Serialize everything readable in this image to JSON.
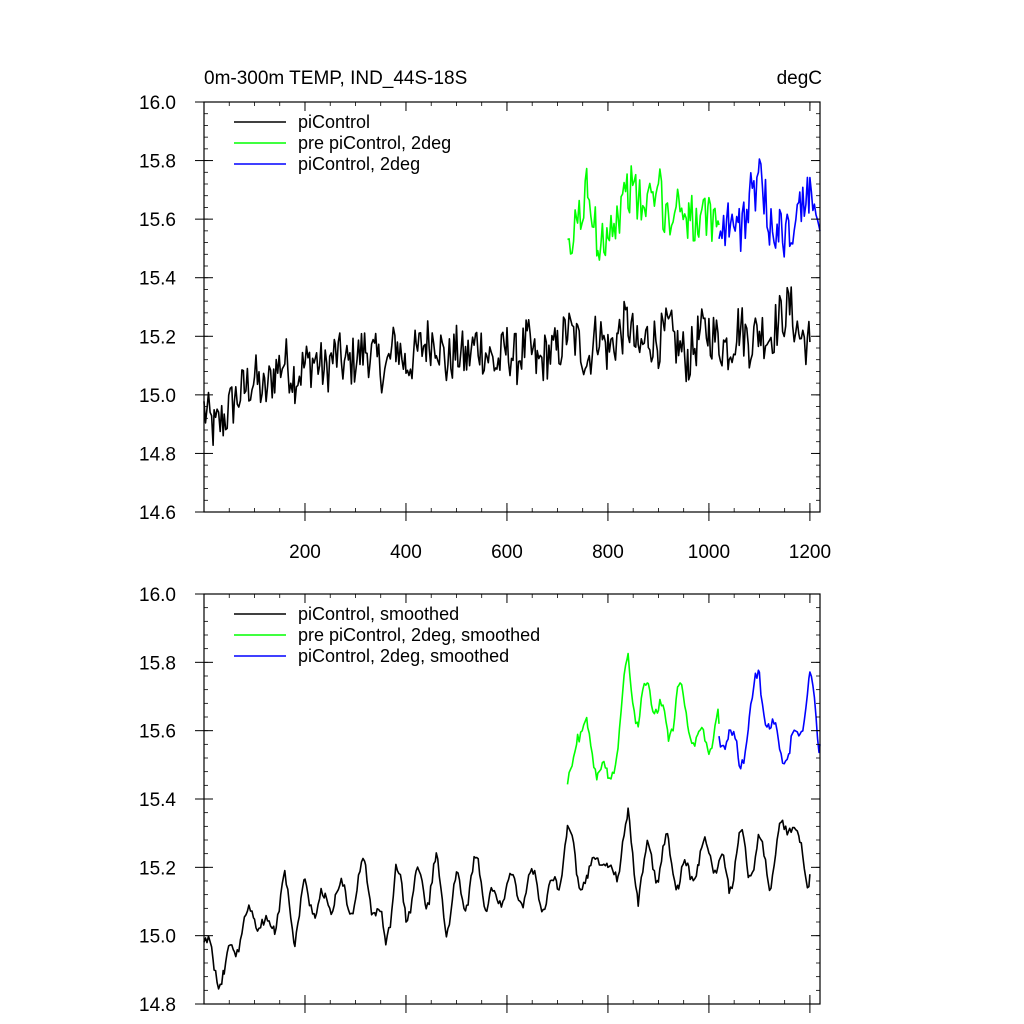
{
  "chart_data": [
    {
      "type": "line",
      "title": "0m-300m TEMP, IND_44S-18S",
      "units": "degC",
      "xlim": [
        0,
        1220
      ],
      "ylim": [
        14.6,
        16.0
      ],
      "xticks": [
        200,
        400,
        600,
        800,
        1000,
        1200
      ],
      "xtick_labels": [
        "200",
        "400",
        "600",
        "800",
        "1000",
        "1200"
      ],
      "yticks": [
        14.6,
        14.8,
        15.0,
        15.2,
        15.4,
        15.6,
        15.8,
        16.0
      ],
      "ytick_labels": [
        "14.6",
        "14.8",
        "15.0",
        "15.2",
        "15.4",
        "15.6",
        "15.8",
        "16.0"
      ],
      "legend_position": "top-left",
      "series": [
        {
          "name": "piControl",
          "color": "#000000",
          "x": [
            0,
            20,
            40,
            60,
            80,
            100,
            120,
            140,
            160,
            180,
            200,
            220,
            240,
            260,
            280,
            300,
            320,
            340,
            360,
            380,
            400,
            420,
            440,
            460,
            480,
            500,
            520,
            540,
            560,
            580,
            600,
            620,
            640,
            660,
            680,
            700,
            720,
            740,
            760,
            780,
            800,
            820,
            840,
            860,
            880,
            900,
            920,
            940,
            960,
            980,
            1000,
            1020,
            1040,
            1060,
            1080,
            1100,
            1120,
            1140,
            1160,
            1180,
            1200
          ],
          "values": [
            14.95,
            14.88,
            14.92,
            14.98,
            15.02,
            15.06,
            15.0,
            15.08,
            15.12,
            15.06,
            15.1,
            15.12,
            15.08,
            15.14,
            15.1,
            15.12,
            15.16,
            15.12,
            15.08,
            15.18,
            15.1,
            15.14,
            15.18,
            15.2,
            15.1,
            15.15,
            15.12,
            15.18,
            15.14,
            15.1,
            15.16,
            15.12,
            15.18,
            15.1,
            15.14,
            15.15,
            15.22,
            15.18,
            15.12,
            15.22,
            15.15,
            15.2,
            15.25,
            15.14,
            15.2,
            15.18,
            15.22,
            15.16,
            15.12,
            15.2,
            15.22,
            15.18,
            15.16,
            15.24,
            15.18,
            15.22,
            15.2,
            15.26,
            15.3,
            15.2,
            15.18
          ]
        },
        {
          "name": "pre piControl, 2deg",
          "color": "#00ff00",
          "x": [
            720,
            740,
            760,
            780,
            800,
            820,
            840,
            860,
            880,
            900,
            920,
            940,
            960,
            980,
            1000,
            1020
          ],
          "values": [
            15.45,
            15.6,
            15.7,
            15.52,
            15.58,
            15.6,
            15.72,
            15.66,
            15.64,
            15.7,
            15.6,
            15.66,
            15.62,
            15.56,
            15.6,
            15.58
          ]
        },
        {
          "name": "piControl, 2deg",
          "color": "#0000ff",
          "x": [
            1020,
            1040,
            1060,
            1080,
            1100,
            1120,
            1140,
            1160,
            1180,
            1200,
            1220
          ],
          "values": [
            15.58,
            15.6,
            15.56,
            15.66,
            15.72,
            15.6,
            15.56,
            15.54,
            15.62,
            15.7,
            15.56
          ]
        }
      ]
    },
    {
      "type": "line",
      "title": "",
      "units": "",
      "xlim": [
        0,
        1220
      ],
      "ylim": [
        14.8,
        16.0
      ],
      "xticks": [
        200,
        400,
        600,
        800,
        1000,
        1200
      ],
      "xtick_labels": [],
      "yticks": [
        14.8,
        15.0,
        15.2,
        15.4,
        15.6,
        15.8,
        16.0
      ],
      "ytick_labels": [
        "14.8",
        "15.0",
        "15.2",
        "15.4",
        "15.6",
        "15.8",
        "16.0"
      ],
      "legend_position": "top-left",
      "series": [
        {
          "name": "piControl, smoothed",
          "color": "#000000",
          "x": [
            0,
            20,
            40,
            60,
            80,
            100,
            120,
            140,
            160,
            180,
            200,
            220,
            240,
            260,
            280,
            300,
            320,
            340,
            360,
            380,
            400,
            420,
            440,
            460,
            480,
            500,
            520,
            540,
            560,
            580,
            600,
            620,
            640,
            660,
            680,
            700,
            720,
            740,
            760,
            780,
            800,
            820,
            840,
            860,
            880,
            900,
            920,
            940,
            960,
            980,
            1000,
            1020,
            1040,
            1060,
            1080,
            1100,
            1120,
            1140,
            1160,
            1180,
            1200
          ],
          "values": [
            14.97,
            14.92,
            14.88,
            14.98,
            15.02,
            15.08,
            15.0,
            15.06,
            15.14,
            15.02,
            15.12,
            15.1,
            15.08,
            15.14,
            15.1,
            15.12,
            15.2,
            15.06,
            15.0,
            15.18,
            15.08,
            15.16,
            15.12,
            15.2,
            15.04,
            15.14,
            15.12,
            15.2,
            15.12,
            15.08,
            15.18,
            15.1,
            15.16,
            15.14,
            15.1,
            15.16,
            15.3,
            15.2,
            15.14,
            15.26,
            15.16,
            15.22,
            15.32,
            15.14,
            15.24,
            15.2,
            15.26,
            15.16,
            15.18,
            15.22,
            15.26,
            15.2,
            15.16,
            15.28,
            15.2,
            15.26,
            15.18,
            15.28,
            15.36,
            15.24,
            15.18
          ]
        },
        {
          "name": "pre piControl, 2deg, smoothed",
          "color": "#00ff00",
          "x": [
            720,
            740,
            760,
            780,
            800,
            820,
            840,
            860,
            880,
            900,
            920,
            940,
            960,
            980,
            1000,
            1020
          ],
          "values": [
            15.4,
            15.62,
            15.58,
            15.5,
            15.44,
            15.58,
            15.8,
            15.62,
            15.74,
            15.66,
            15.6,
            15.72,
            15.62,
            15.56,
            15.58,
            15.62
          ]
        },
        {
          "name": "piControl, 2deg, smoothed",
          "color": "#0000ff",
          "x": [
            1020,
            1040,
            1060,
            1080,
            1100,
            1120,
            1140,
            1160,
            1180,
            1200,
            1220
          ],
          "values": [
            15.54,
            15.62,
            15.48,
            15.64,
            15.76,
            15.6,
            15.56,
            15.52,
            15.62,
            15.74,
            15.56
          ]
        }
      ]
    }
  ]
}
